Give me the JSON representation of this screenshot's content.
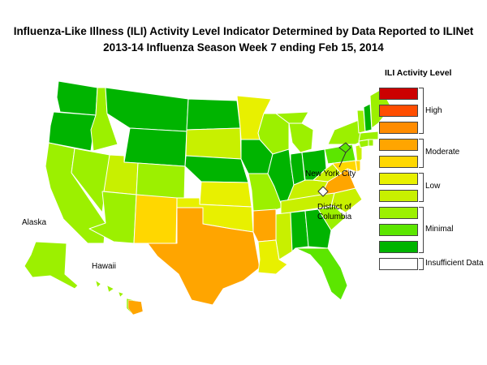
{
  "title_line1": "Influenza-Like Illness (ILI) Activity Level Indicator Determined by Data Reported to ILINet",
  "title_line2": "2013-14  Influenza Season Week  7 ending Feb 15, 2014",
  "legend": {
    "title": "ILI Activity Level",
    "levels": [
      {
        "level": 10,
        "color": "#cc0000"
      },
      {
        "level": 9,
        "color": "#ff4d00"
      },
      {
        "level": 8,
        "color": "#ff8c00"
      },
      {
        "level": 7,
        "color": "#ffa500"
      },
      {
        "level": 6,
        "color": "#ffd700"
      },
      {
        "level": 5,
        "color": "#e8f000"
      },
      {
        "level": 4,
        "color": "#c8f000"
      },
      {
        "level": 3,
        "color": "#9cf000"
      },
      {
        "level": 2,
        "color": "#5ce600"
      },
      {
        "level": 1,
        "color": "#00b400"
      },
      {
        "level": 0,
        "color": "#ffffff"
      }
    ],
    "groups": {
      "high": "High",
      "moderate": "Moderate",
      "low": "Low",
      "minimal": "Minimal",
      "insufficient": "Insufficient Data"
    }
  },
  "labels": {
    "nyc": "New York City",
    "dc_line1": "District of",
    "dc_line2": "Columbia",
    "alaska": "Alaska",
    "hawaii": "Hawaii"
  },
  "map_icons": {
    "state_shapes": "us-state-polygons",
    "nyc_marker": "nyc-polygon",
    "dc_marker": "dc-diamond"
  }
}
